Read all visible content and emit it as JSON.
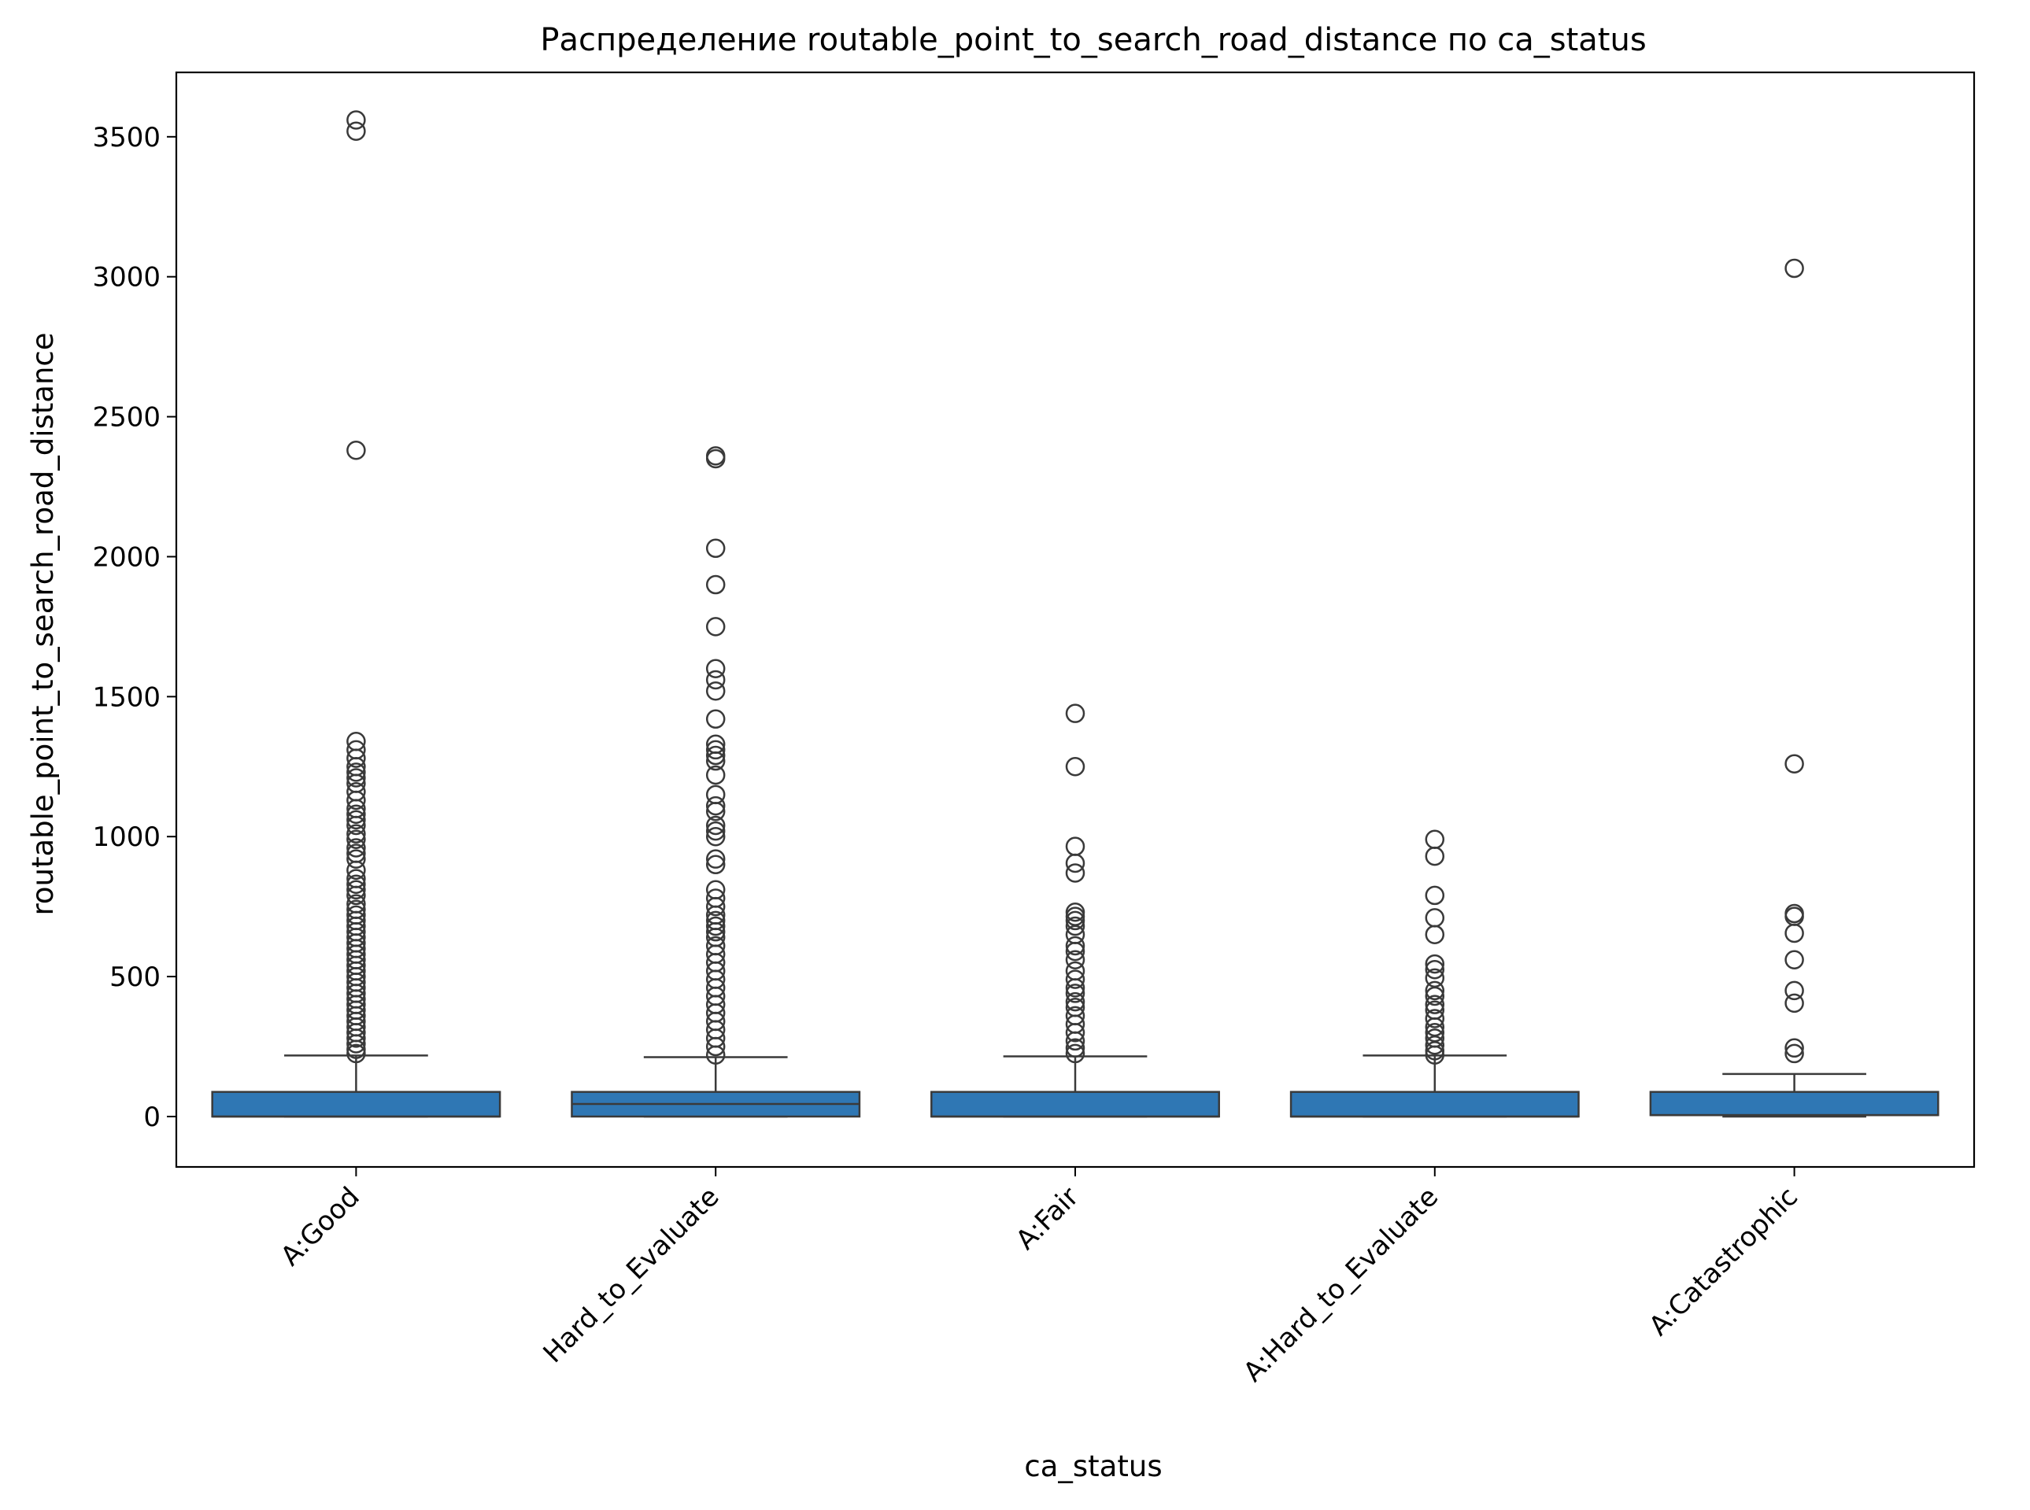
{
  "chart_data": {
    "type": "box",
    "title": "Распределение routable_point_to_search_road_distance по ca_status",
    "xlabel": "ca_status",
    "ylabel": "routable_point_to_search_road_distance",
    "ylim": [
      -180,
      3730
    ],
    "yticks": [
      0,
      500,
      1000,
      1500,
      2000,
      2500,
      3000,
      3500
    ],
    "grid": false,
    "box_color": "#2f77b4",
    "edge_color": "#3a3a3a",
    "categories": [
      "A:Good",
      "Hard_to_Evaluate",
      "A:Fair",
      "A:Hard_to_Evaluate",
      "A:Catastrophic"
    ],
    "boxes": [
      {
        "category": "A:Good",
        "whisker_low": 0,
        "q1": 0,
        "median": 0,
        "q3": 88,
        "whisker_high": 218,
        "outliers": [
          3560,
          3520,
          2380,
          1340,
          1310,
          1280,
          1250,
          1230,
          1210,
          1190,
          1160,
          1130,
          1100,
          1080,
          1060,
          1040,
          1010,
          990,
          960,
          940,
          920,
          880,
          850,
          830,
          810,
          790,
          760,
          740,
          720,
          700,
          680,
          660,
          640,
          620,
          600,
          580,
          560,
          540,
          520,
          500,
          480,
          460,
          440,
          420,
          400,
          380,
          360,
          340,
          320,
          300,
          280,
          260,
          240,
          225
        ]
      },
      {
        "category": "Hard_to_Evaluate",
        "whisker_low": 0,
        "q1": 0,
        "median": 45,
        "q3": 88,
        "whisker_high": 212,
        "outliers": [
          2360,
          2350,
          2030,
          1900,
          1750,
          1600,
          1560,
          1520,
          1420,
          1330,
          1310,
          1290,
          1270,
          1220,
          1150,
          1110,
          1090,
          1040,
          1020,
          1000,
          920,
          900,
          810,
          780,
          750,
          720,
          700,
          680,
          660,
          640,
          610,
          580,
          550,
          520,
          490,
          460,
          430,
          400,
          370,
          340,
          310,
          280,
          250,
          220
        ]
      },
      {
        "category": "A:Fair",
        "whisker_low": 0,
        "q1": 0,
        "median": 0,
        "q3": 88,
        "whisker_high": 215,
        "outliers": [
          1440,
          1250,
          965,
          905,
          870,
          730,
          715,
          700,
          680,
          650,
          610,
          590,
          560,
          520,
          490,
          460,
          440,
          410,
          390,
          360,
          330,
          300,
          270,
          245,
          225
        ]
      },
      {
        "category": "A:Hard_to_Evaluate",
        "whisker_low": 0,
        "q1": 0,
        "median": 0,
        "q3": 88,
        "whisker_high": 218,
        "outliers": [
          990,
          930,
          790,
          710,
          650,
          545,
          525,
          495,
          450,
          430,
          400,
          380,
          350,
          320,
          300,
          280,
          255,
          235,
          220
        ]
      },
      {
        "category": "A:Catastrophic",
        "whisker_low": 0,
        "q1": 5,
        "median": 5,
        "q3": 88,
        "whisker_high": 152,
        "outliers": [
          3030,
          1260,
          725,
          715,
          655,
          560,
          450,
          405,
          245,
          225
        ]
      }
    ]
  }
}
